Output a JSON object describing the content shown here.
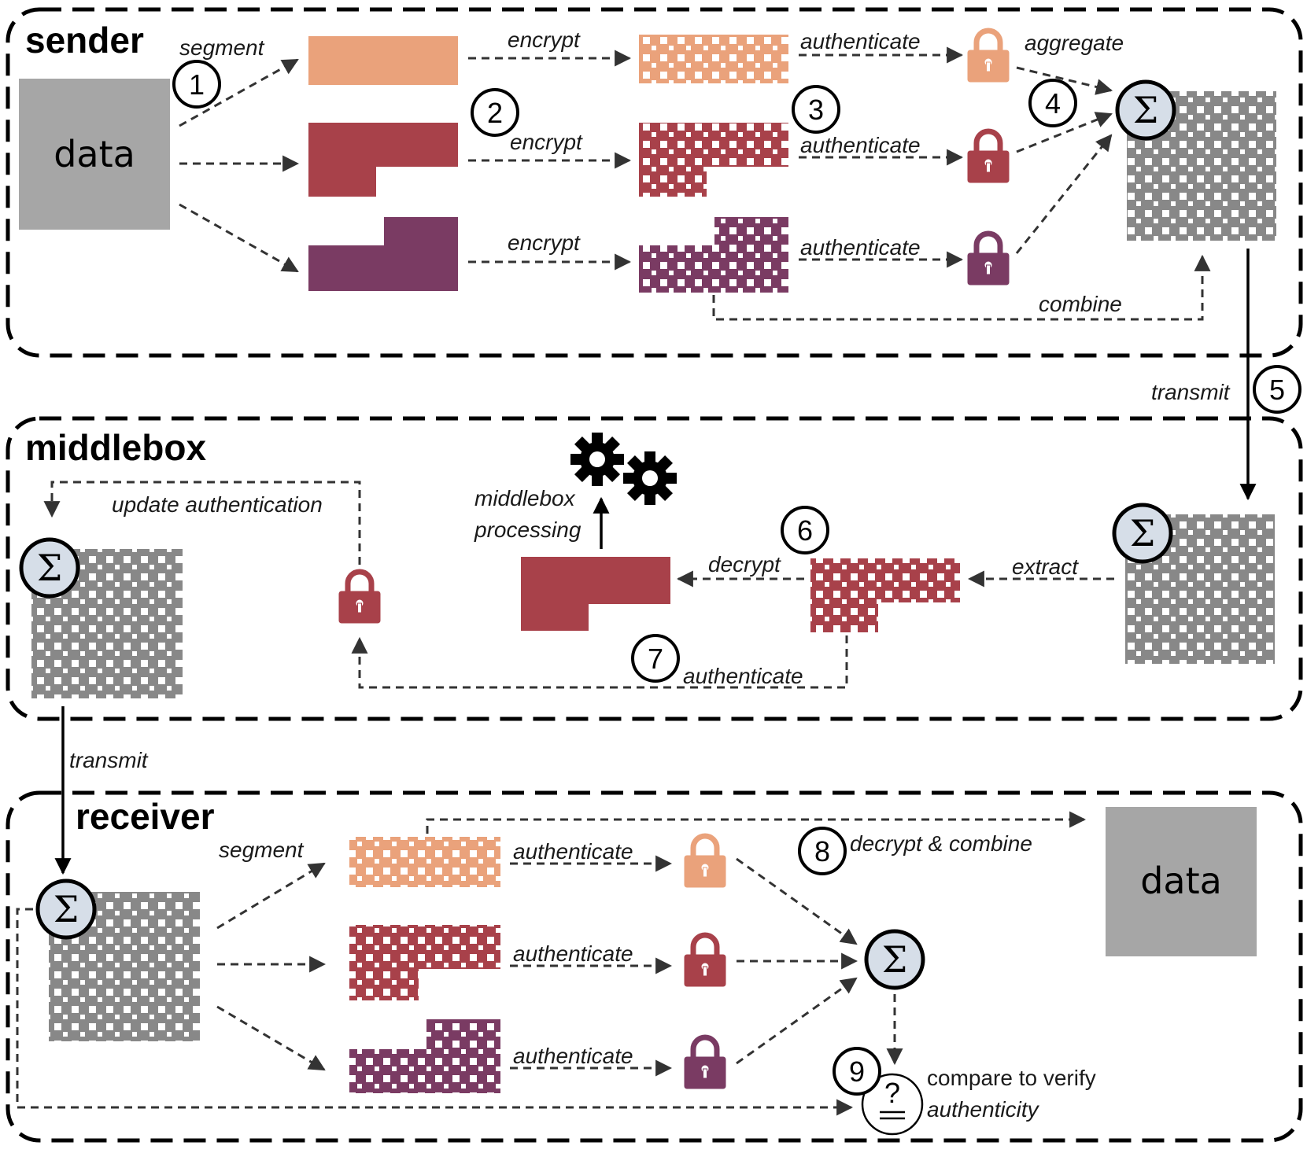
{
  "sections": {
    "sender": "sender",
    "middlebox": "middlebox",
    "receiver": "receiver"
  },
  "data_label": "data",
  "sender": {
    "segment": "segment",
    "encrypt": "encrypt",
    "authenticate": "authenticate",
    "aggregate": "aggregate",
    "combine": "combine"
  },
  "transmit": "transmit",
  "middlebox": {
    "update_authentication": "update authentication",
    "processing_line1": "middlebox",
    "processing_line2": "processing",
    "decrypt": "decrypt",
    "extract": "extract",
    "authenticate": "authenticate"
  },
  "receiver": {
    "segment": "segment",
    "authenticate": "authenticate",
    "decrypt_combine": "decrypt & combine",
    "compare_line1": "compare to verify",
    "compare_line2": "authenticity"
  },
  "steps": [
    "1",
    "2",
    "3",
    "4",
    "5",
    "6",
    "7",
    "8",
    "9"
  ],
  "symbols": {
    "sigma": "Σ",
    "question": "?"
  },
  "colors": {
    "orange": "#eaa27b",
    "red": "#a8414a",
    "purple": "#7a3b63",
    "gray": "#888888",
    "data_gray": "#a6a6a6",
    "sigma_fill": "#d6dee8"
  },
  "icons": [
    "lock-icon",
    "gear-icon",
    "sigma-icon",
    "verify-icon"
  ]
}
